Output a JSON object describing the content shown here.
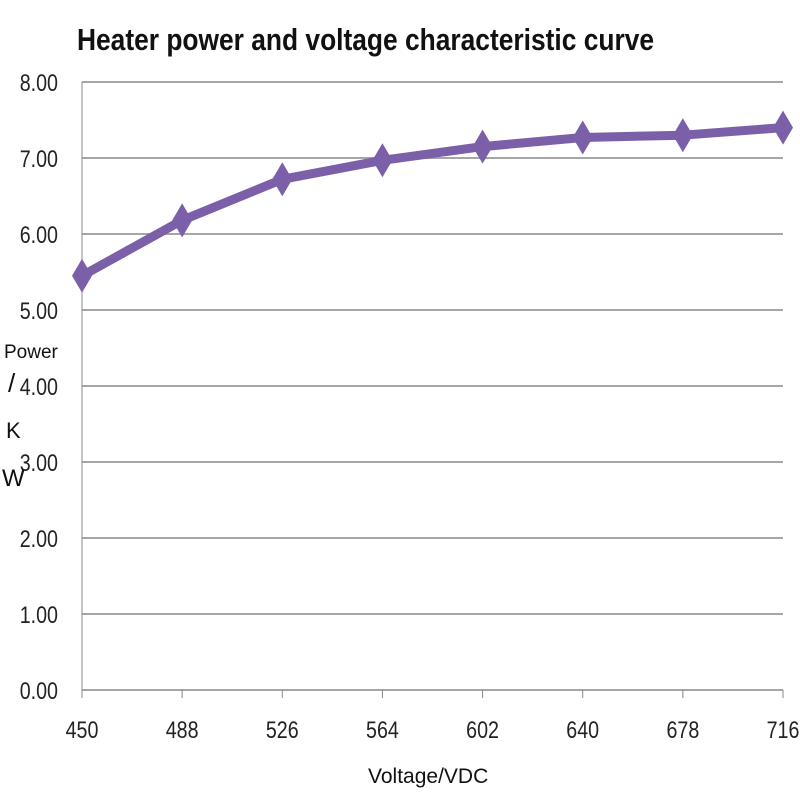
{
  "chart_data": {
    "type": "line",
    "title": "Heater power and voltage characteristic curve",
    "xlabel": "Voltage/VDC",
    "ylabel_parts": [
      "Power",
      "/",
      "K",
      "W"
    ],
    "categories": [
      "450",
      "488",
      "526",
      "564",
      "602",
      "640",
      "678",
      "716"
    ],
    "series": [
      {
        "values": [
          5.45,
          6.18,
          6.72,
          6.97,
          7.15,
          7.27,
          7.3,
          7.4
        ],
        "color": "#7b5fa8",
        "marker": "diamond"
      }
    ],
    "yticks": [
      "0.00",
      "1.00",
      "2.00",
      "3.00",
      "4.00",
      "5.00",
      "6.00",
      "7.00",
      "8.00"
    ],
    "ylim": [
      0,
      8
    ],
    "grid": "horizontal",
    "legend": "none"
  }
}
